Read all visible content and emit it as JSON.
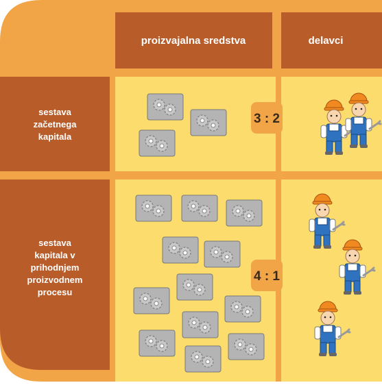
{
  "header": {
    "columns": [
      "proizvajalna sredstva",
      "delavci"
    ]
  },
  "rows": [
    {
      "label": [
        "sestava",
        "začetnega",
        "kapitala"
      ],
      "ratio": "3 : 2"
    },
    {
      "label": [
        "sestava",
        "kapitala v",
        "prihodnjem",
        "proizvodnem",
        "procesu"
      ],
      "ratio": "4 : 1"
    }
  ]
}
